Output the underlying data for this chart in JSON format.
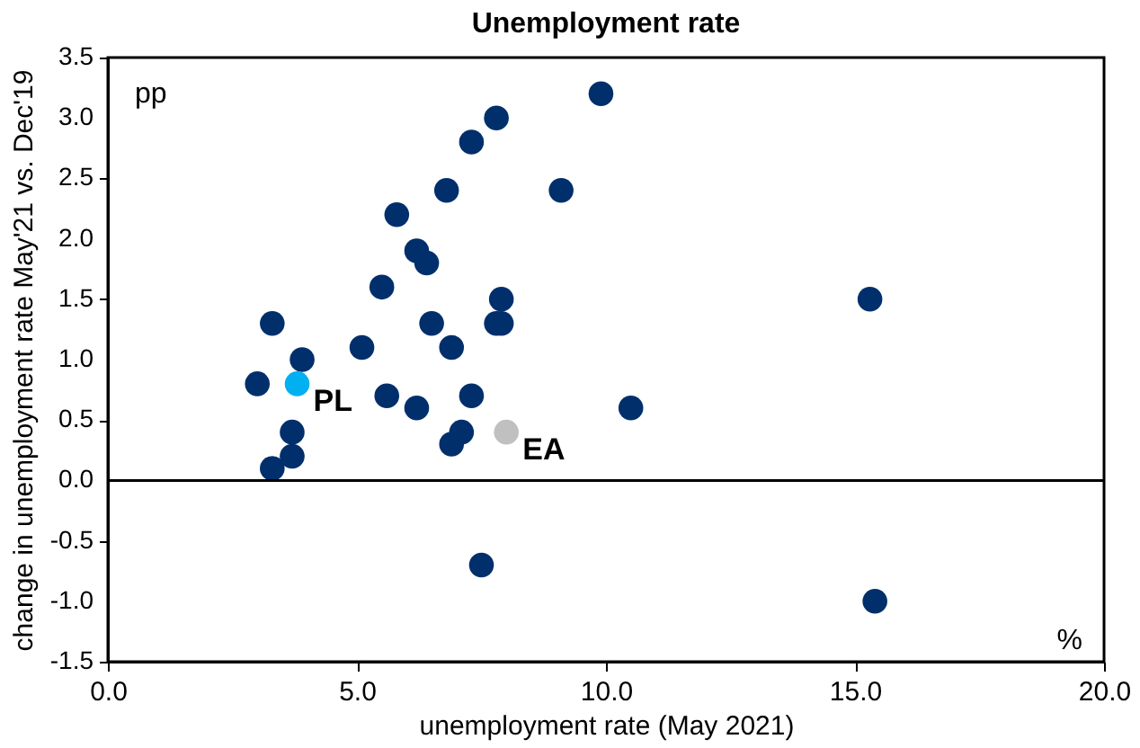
{
  "chart_data": {
    "type": "scatter",
    "title": "Unemployment rate",
    "xlabel": "unemployment rate (May 2021)",
    "ylabel": "change in unemployment rate May'21 vs. Dec'19",
    "series": [
      {
        "color": "#002f6c",
        "x": [
          3.0,
          3.3,
          3.3,
          3.7,
          3.7,
          3.9,
          5.1,
          5.5,
          5.6,
          5.8,
          6.2,
          6.2,
          6.4,
          6.5,
          6.8,
          6.9,
          6.9,
          7.1,
          7.3,
          7.3,
          7.5,
          7.8,
          7.8,
          7.9,
          7.9,
          9.1,
          9.9,
          10.5,
          15.3,
          15.4
        ],
        "values": [
          0.8,
          1.3,
          0.1,
          0.4,
          0.2,
          1.0,
          1.1,
          1.6,
          0.7,
          2.2,
          0.6,
          1.9,
          1.8,
          1.3,
          2.4,
          1.1,
          0.3,
          0.4,
          0.7,
          2.8,
          -0.7,
          3.0,
          1.3,
          1.5,
          1.3,
          2.4,
          3.2,
          0.6,
          1.5,
          -1.0
        ]
      },
      {
        "name": "PL",
        "color": "#00b0f0",
        "x": [
          3.8
        ],
        "values": [
          0.8
        ]
      },
      {
        "name": "EA",
        "color": "#c0c0c0",
        "x": [
          8.0
        ],
        "values": [
          0.4
        ]
      }
    ],
    "xlim": [
      0,
      20
    ],
    "xticks": [
      {
        "value": 0,
        "label": "0.0"
      },
      {
        "value": 5,
        "label": "5.0"
      },
      {
        "value": 10,
        "label": "10.0"
      },
      {
        "value": 15,
        "label": "15.0"
      },
      {
        "value": 20,
        "label": "20.0"
      }
    ],
    "ylim": [
      -1.5,
      3.5
    ],
    "yticks": [
      {
        "value": -1.5,
        "label": "-1.5"
      },
      {
        "value": -1,
        "label": "-1.0"
      },
      {
        "value": -0.5,
        "label": "-0.5"
      },
      {
        "value": 0,
        "label": "0.0"
      },
      {
        "value": 0.5,
        "label": "0.5"
      },
      {
        "value": 1,
        "label": "1.0"
      },
      {
        "value": 1.5,
        "label": "1.5"
      },
      {
        "value": 2,
        "label": "2.0"
      },
      {
        "value": 2.5,
        "label": "2.5"
      },
      {
        "value": 3,
        "label": "3.0"
      },
      {
        "value": 3.5,
        "label": "3.5"
      }
    ],
    "ref_lines": [
      {
        "axis": "y",
        "value": 0,
        "color": "#000000"
      }
    ],
    "annotations": [
      "pp",
      "%"
    ],
    "marker": "circle",
    "grid": false
  }
}
